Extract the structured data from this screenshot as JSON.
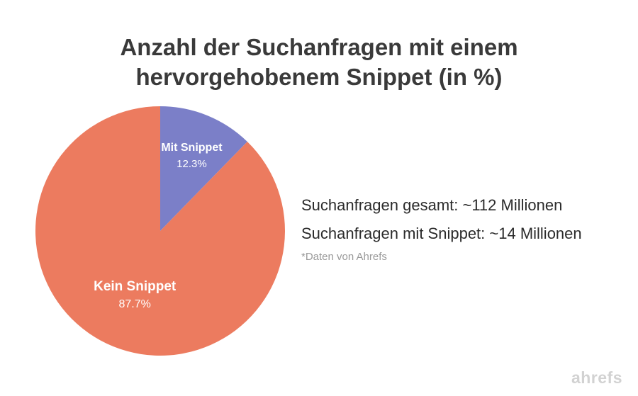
{
  "title": {
    "line1": "Anzahl der Suchanfragen mit einem",
    "line2": "hervorgehobenem Snippet (in %)"
  },
  "chart_data": {
    "type": "pie",
    "title": "Anzahl der Suchanfragen mit einem hervorgehobenem Snippet (in %)",
    "slices": [
      {
        "label": "Mit Snippet",
        "value": 12.3,
        "display": "12.3%",
        "color": "#7b7fc8"
      },
      {
        "label": "Kein Snippet",
        "value": 87.7,
        "display": "87.7%",
        "color": "#ec7b5f"
      }
    ],
    "legend": "none",
    "data_labels": "inside"
  },
  "info": {
    "total": "Suchanfragen gesamt: ~112 Millionen",
    "with_snippet": "Suchanfragen mit Snippet: ~14 Millionen",
    "source_note": "*Daten von Ahrefs"
  },
  "brand": "ahrefs"
}
